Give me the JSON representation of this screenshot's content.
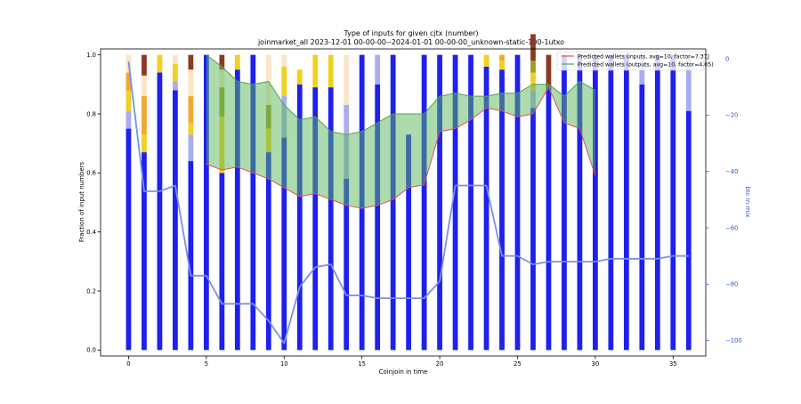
{
  "chart_data": {
    "type": "bar",
    "title": "Type of inputs for given cjtx (number)",
    "subtitle": "joinmarket_all 2023-12-01 00-00-00--2024-01-01 00-00-00_unknown-static-100-1utxo",
    "xlabel": "Coinjoin in time",
    "ylabel": "Fraction of input numbers",
    "y2label": "btc in mix",
    "xlim": [
      -1.8,
      37.1
    ],
    "ylim": [
      -0.02,
      1.02
    ],
    "y2lim": [
      -105.5,
      3.5
    ],
    "xticks": [
      0,
      5,
      10,
      15,
      20,
      25,
      30,
      35
    ],
    "yticks": [
      0.0,
      0.2,
      0.4,
      0.6,
      0.8,
      1.0
    ],
    "y2ticks": [
      0,
      -20,
      -40,
      -60,
      -80,
      -100
    ],
    "x": [
      0,
      1,
      2,
      3,
      4,
      5,
      6,
      7,
      8,
      9,
      10,
      11,
      12,
      13,
      14,
      15,
      16,
      17,
      18,
      19,
      20,
      21,
      22,
      23,
      24,
      25,
      26,
      27,
      28,
      29,
      30,
      31,
      32,
      33,
      34,
      35,
      36
    ],
    "stack_series": [
      {
        "name": "",
        "color": "#1f1fee",
        "values": [
          0.75,
          0.67,
          0.94,
          0.88,
          0.64,
          1.0,
          0.6,
          0.95,
          1.0,
          0.67,
          0.72,
          0.9,
          0.89,
          0.89,
          0.58,
          1.0,
          0.9,
          1.0,
          0.73,
          1.0,
          1.0,
          1.0,
          1.0,
          0.96,
          0.95,
          1.0,
          0.82,
          0.89,
          1.0,
          1.0,
          1.0,
          1.0,
          1.0,
          0.9,
          1.0,
          1.0,
          0.81
        ]
      },
      {
        "name": "",
        "color": "#a8acf0",
        "values": [
          0.06,
          0,
          0,
          0.03,
          0.09,
          0,
          0,
          0,
          0,
          0,
          0.14,
          0,
          0,
          0,
          0.25,
          0,
          0.1,
          0,
          0,
          0,
          0,
          0,
          0,
          0,
          0,
          0,
          0.06,
          0,
          0,
          0,
          0,
          0,
          0,
          0.1,
          0,
          0,
          0.19
        ]
      },
      {
        "name": "",
        "color": "#f0d020",
        "values": [
          0.07,
          0.06,
          0.06,
          0.06,
          0.04,
          0,
          0.19,
          0.05,
          0,
          0.08,
          0.1,
          0.05,
          0.11,
          0.11,
          0,
          0,
          0,
          0,
          0,
          0,
          0,
          0,
          0,
          0.04,
          0.03,
          0,
          0.06,
          0,
          0,
          0,
          0,
          0,
          0,
          0,
          0,
          0,
          0
        ]
      },
      {
        "name": "",
        "color": "#9aa020",
        "values": [
          0,
          0,
          0,
          0,
          0,
          0,
          0.1,
          0,
          0,
          0.08,
          0,
          0,
          0,
          0,
          0,
          0,
          0,
          0,
          0,
          0,
          0,
          0,
          0,
          0,
          0,
          0,
          0.04,
          0,
          0,
          0,
          0,
          0,
          0,
          0,
          0,
          0,
          0
        ]
      },
      {
        "name": "",
        "color": "#f0a830",
        "values": [
          0.06,
          0.13,
          0,
          0,
          0.09,
          0,
          0,
          0,
          0,
          0,
          0,
          0,
          0,
          0,
          0,
          0,
          0,
          0,
          0,
          0,
          0,
          0,
          0,
          0,
          0.02,
          0,
          0,
          0,
          0,
          0,
          0,
          0,
          0,
          0,
          0,
          0,
          0
        ]
      },
      {
        "name": "",
        "color": "#fde4c6",
        "values": [
          0.06,
          0.07,
          0,
          0.03,
          0.09,
          0,
          0.06,
          0,
          0,
          0.17,
          0.04,
          0,
          0,
          0,
          0.17,
          0,
          0,
          0,
          0,
          0,
          0,
          0,
          0,
          0,
          0,
          0,
          0,
          0,
          0,
          0,
          0,
          0,
          0,
          0,
          0,
          0,
          0
        ]
      },
      {
        "name": "",
        "color": "#8b3a22",
        "values": [
          0,
          0.07,
          0,
          0,
          0.05,
          0,
          0.05,
          0,
          0,
          0,
          0,
          0,
          0,
          0,
          0,
          0,
          0,
          0,
          0,
          0,
          0,
          0,
          0,
          0,
          0,
          0,
          0.09,
          0.11,
          0,
          0,
          0,
          0,
          0,
          0,
          0,
          0,
          0
        ]
      }
    ],
    "btc_in_mix": [
      -1,
      -47,
      -47,
      -45,
      -77,
      -77,
      -87,
      -87,
      -87,
      -93,
      -101,
      -81,
      -74,
      -73,
      -84,
      -84,
      -85,
      -85,
      -85,
      -85,
      -79,
      -45,
      -45,
      -45,
      -70,
      -70,
      -73,
      -72,
      -72,
      -72,
      -72,
      -71,
      -71,
      -71,
      -71,
      -70,
      -70
    ],
    "btc_color": "#7890e8",
    "predicted_inputs": {
      "name": "Predicted wallets (inputs, avg=10, factor=7.37)",
      "color": "#e05050",
      "x": [
        5,
        6,
        7,
        8,
        9,
        10,
        11,
        12,
        13,
        14,
        15,
        16,
        17,
        18,
        19,
        20,
        21,
        22,
        23,
        24,
        25,
        26,
        27,
        28,
        29,
        30
      ],
      "values": [
        0.63,
        0.61,
        0.62,
        0.6,
        0.58,
        0.55,
        0.52,
        0.53,
        0.51,
        0.49,
        0.48,
        0.49,
        0.51,
        0.55,
        0.56,
        0.74,
        0.75,
        0.78,
        0.82,
        0.81,
        0.79,
        0.8,
        0.89,
        0.77,
        0.75,
        0.59
      ]
    },
    "predicted_outputs": {
      "name": "Predicted wallets (outputs, avg=10, factor=4.05)",
      "color": "#50a050",
      "x": [
        5,
        6,
        7,
        8,
        9,
        10,
        11,
        12,
        13,
        14,
        15,
        16,
        17,
        18,
        19,
        20,
        21,
        22,
        23,
        24,
        25,
        26,
        27,
        28,
        29,
        30
      ],
      "values": [
        1.0,
        0.96,
        0.91,
        0.9,
        0.91,
        0.83,
        0.78,
        0.79,
        0.74,
        0.73,
        0.74,
        0.77,
        0.8,
        0.8,
        0.8,
        0.86,
        0.87,
        0.86,
        0.86,
        0.87,
        0.87,
        0.9,
        0.9,
        0.86,
        0.91,
        0.88
      ]
    },
    "fill_color": "#5cb85c",
    "legend_position": "top-right",
    "grid": false
  }
}
